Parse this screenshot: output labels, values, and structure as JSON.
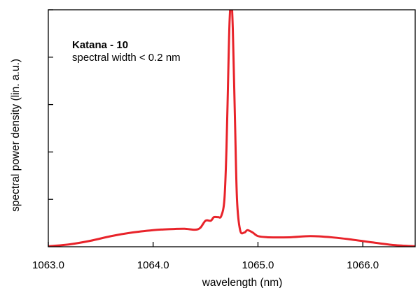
{
  "chart_data": {
    "type": "line",
    "title": "",
    "xlabel": "wavelength (nm)",
    "ylabel": "spectral power density (lin. a.u.)",
    "xlim": [
      1063.0,
      1066.5
    ],
    "ylim": [
      0,
      1.0
    ],
    "x_ticks": [
      1063.0,
      1064.0,
      1065.0,
      1066.0
    ],
    "x_tick_labels": [
      "1063.0",
      "1064.0",
      "1065.0",
      "1066.0"
    ],
    "y_ticks": [
      0.2,
      0.4,
      0.6,
      0.8,
      1.0
    ],
    "y_tick_labels_shown": false,
    "grid": false,
    "legend": "none",
    "annotations": [
      {
        "text": "Katana - 10",
        "bold": true
      },
      {
        "text": "spectral width < 0.2 nm",
        "bold": false
      }
    ],
    "series": [
      {
        "color": "#e8232a",
        "x": [
          1063.0,
          1063.2,
          1063.4,
          1063.6,
          1063.8,
          1064.0,
          1064.1,
          1064.2,
          1064.3,
          1064.4,
          1064.45,
          1064.5,
          1064.55,
          1064.58,
          1064.62,
          1064.65,
          1064.68,
          1064.7,
          1064.72,
          1064.73,
          1064.745,
          1064.76,
          1064.78,
          1064.8,
          1064.83,
          1064.87,
          1064.9,
          1064.95,
          1065.0,
          1065.1,
          1065.3,
          1065.5,
          1065.7,
          1065.9,
          1066.1,
          1066.3,
          1066.5
        ],
        "y": [
          0.002,
          0.01,
          0.025,
          0.045,
          0.06,
          0.07,
          0.073,
          0.075,
          0.076,
          0.072,
          0.08,
          0.11,
          0.11,
          0.125,
          0.125,
          0.13,
          0.2,
          0.42,
          0.8,
          0.96,
          1.05,
          0.92,
          0.55,
          0.2,
          0.07,
          0.06,
          0.07,
          0.06,
          0.045,
          0.04,
          0.04,
          0.045,
          0.04,
          0.03,
          0.018,
          0.007,
          0.002
        ]
      }
    ]
  }
}
